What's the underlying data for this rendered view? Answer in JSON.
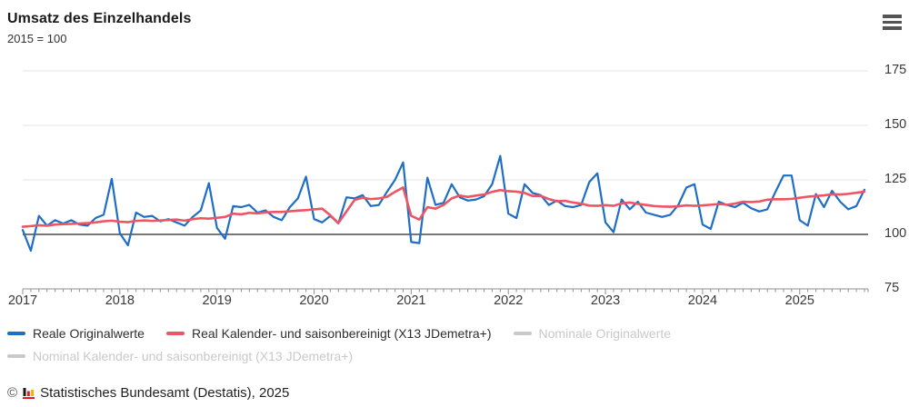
{
  "header": {
    "title": "Umsatz des Einzelhandels",
    "subtitle": "2015 = 100"
  },
  "chart_data": {
    "type": "line",
    "title": "Umsatz des Einzelhandels",
    "subtitle": "2015 = 100",
    "x_unit": "month",
    "x_range": [
      "2017-01",
      "2025-09"
    ],
    "months_total": 105,
    "x_tick_labels": [
      "2017",
      "2018",
      "2019",
      "2020",
      "2021",
      "2022",
      "2023",
      "2024",
      "2025"
    ],
    "y_ticks": [
      75,
      100,
      125,
      150,
      175
    ],
    "ylim": [
      75,
      183
    ],
    "baseline": 100,
    "grid": true,
    "legend_position": "bottom",
    "colors": {
      "grid": "#e4e4e4",
      "baseline": "#4a4a4a",
      "axis": "#8f8f8f",
      "tick": "#8f8f8f"
    },
    "series": [
      {
        "name": "Reale Originalwerte",
        "color": "#1f6ec6",
        "width": 2.2,
        "visible": true,
        "values": [
          102,
          92.5,
          108.5,
          104,
          106.5,
          105,
          106.5,
          104.5,
          104,
          107.5,
          109,
          125.5,
          100.5,
          95,
          110,
          108,
          108.5,
          106,
          107,
          105.5,
          104,
          108,
          111,
          123.5,
          103,
          98,
          113,
          112.5,
          113.5,
          110,
          111,
          108,
          106.5,
          112.5,
          116.5,
          126.5,
          107,
          105.5,
          108.5,
          105,
          117,
          116.5,
          118,
          113,
          113.5,
          119.5,
          125,
          133,
          96.5,
          96,
          126,
          113.5,
          114.5,
          123,
          117,
          115.5,
          116,
          117.5,
          123,
          136,
          109.5,
          107.5,
          123,
          119,
          118,
          113.5,
          115.5,
          113,
          112.5,
          113.5,
          124,
          128,
          105.5,
          101,
          116,
          111.5,
          115,
          110,
          109,
          108,
          109,
          113.5,
          121.5,
          123,
          104.5,
          102.5,
          115,
          113.5,
          112.5,
          114.5,
          112,
          110.5,
          111.5,
          119.5,
          127,
          127,
          106.5,
          104,
          118.5,
          112.5,
          120,
          115,
          111.5,
          113,
          120.5
        ]
      },
      {
        "name": "Real Kalender- und saisonbereinigt (X13 JDemetra+)",
        "color": "#ed5565",
        "width": 2.6,
        "visible": true,
        "values": [
          103.5,
          103.8,
          104.2,
          104.0,
          104.5,
          104.7,
          104.8,
          105.0,
          105.2,
          105.5,
          106.0,
          106.3,
          105.8,
          105.6,
          106.2,
          106.4,
          106.2,
          106.4,
          106.6,
          106.8,
          106.3,
          107.0,
          107.4,
          107.2,
          107.6,
          108.0,
          109.5,
          109.2,
          109.9,
          109.6,
          110.1,
          110.3,
          110.3,
          110.6,
          110.9,
          111.1,
          111.5,
          111.8,
          108.8,
          105.2,
          110.5,
          115.8,
          116.8,
          116.2,
          116.5,
          117.2,
          119.5,
          121.5,
          108.5,
          106.8,
          112.5,
          111.8,
          113.5,
          116.5,
          117.8,
          117.2,
          117.8,
          118.3,
          119.5,
          120.3,
          119.8,
          119.6,
          119.0,
          117.6,
          117.7,
          116.2,
          115.2,
          115.4,
          114.6,
          114.1,
          113.2,
          113.1,
          113.4,
          113.1,
          114.2,
          114.6,
          114.0,
          113.5,
          113.0,
          112.8,
          112.7,
          112.9,
          113.3,
          113.1,
          113.3,
          113.6,
          113.9,
          113.6,
          114.1,
          115.0,
          114.8,
          115.1,
          115.9,
          116.1,
          116.1,
          116.3,
          116.8,
          117.3,
          117.6,
          117.9,
          118.4,
          118.3,
          118.6,
          119.1,
          119.6
        ]
      },
      {
        "name": "Nominale Originalwerte",
        "color": "#c9c9c9",
        "width": 2.2,
        "visible": false,
        "values": []
      },
      {
        "name": "Nominal Kalender- und saisonbereinigt (X13 JDemetra+)",
        "color": "#c9c9c9",
        "width": 2.2,
        "visible": false,
        "values": []
      }
    ]
  },
  "legend": {
    "active_color": "#2e2e2e",
    "disabled_color": "#c9c9c9",
    "items": [
      {
        "label": "Reale Originalwerte",
        "enabled": true
      },
      {
        "label": "Real Kalender- und saisonbereinigt (X13 JDemetra+)",
        "enabled": true
      },
      {
        "label": "Nominale Originalwerte",
        "enabled": false
      },
      {
        "label": "Nominal Kalender- und saisonbereinigt (X13 JDemetra+)",
        "enabled": false
      }
    ]
  },
  "footer": {
    "copyright": "©",
    "text": "Statistisches Bundesamt (Destatis), 2025"
  }
}
